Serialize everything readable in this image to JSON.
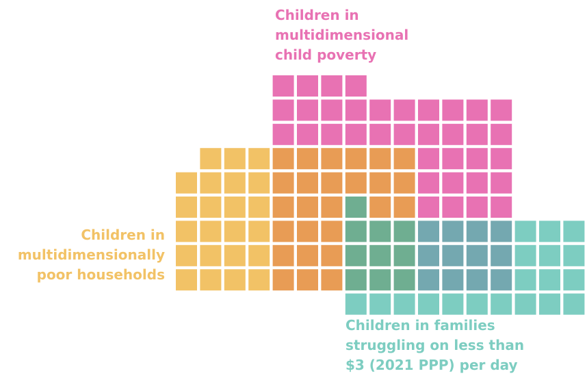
{
  "chart_data": {
    "type": "waffle",
    "title": "",
    "groups": [
      {
        "name": "Children in multidimensional child poverty",
        "label_lines": [
          "Children in",
          "multidimensional",
          "child poverty"
        ],
        "color": "#E872B3"
      },
      {
        "name": "Children in multidimensionally poor households",
        "label_lines": [
          "Children in",
          "multidimensionally",
          "poor households"
        ],
        "color": "#F2C266"
      },
      {
        "name": "Children in families struggling on less than $3 (2021 PPP) per day",
        "label_lines": [
          "Children in families",
          "struggling on less than",
          "$3 (2021 PPP) per day"
        ],
        "color": "#7DCDC1"
      }
    ],
    "overlap_colors": {
      "child_poverty_and_poor_households": "#E89C55",
      "child_poverty_and_3_dollar": "#74A8B0",
      "poor_households_and_3_dollar": "#6FAE91",
      "all_three": "#6FAE91"
    },
    "rows": [
      [
        "",
        "",
        "",
        "",
        "CP",
        "CP",
        "CP",
        "CP",
        "",
        "",
        "",
        "",
        "",
        "",
        "",
        "",
        ""
      ],
      [
        "",
        "",
        "",
        "",
        "CP",
        "CP",
        "CP",
        "CP",
        "CP",
        "CP",
        "CP",
        "CP",
        "CP",
        "CP",
        "",
        "",
        ""
      ],
      [
        "",
        "",
        "",
        "",
        "CP",
        "CP",
        "CP",
        "CP",
        "CP",
        "CP",
        "CP",
        "CP",
        "CP",
        "CP",
        "",
        "",
        ""
      ],
      [
        "",
        "HH",
        "HH",
        "HH",
        "CP+HH",
        "CP+HH",
        "CP+HH",
        "CP+HH",
        "CP+HH",
        "CP+HH",
        "CP",
        "CP",
        "CP",
        "CP",
        "",
        "",
        ""
      ],
      [
        "HH",
        "HH",
        "HH",
        "HH",
        "CP+HH",
        "CP+HH",
        "CP+HH",
        "CP+HH",
        "CP+HH",
        "CP+HH",
        "CP",
        "CP",
        "CP",
        "CP",
        "",
        "",
        ""
      ],
      [
        "HH",
        "HH",
        "HH",
        "HH",
        "CP+HH",
        "CP+HH",
        "CP+HH",
        "ALL",
        "CP+HH",
        "CP+HH",
        "CP",
        "CP",
        "CP",
        "CP",
        "",
        "",
        ""
      ],
      [
        "HH",
        "HH",
        "HH",
        "HH",
        "CP+HH",
        "CP+HH",
        "CP+HH",
        "HH+D3",
        "HH+D3",
        "HH+D3",
        "CP+D3",
        "CP+D3",
        "CP+D3",
        "CP+D3",
        "D3",
        "D3",
        "D3"
      ],
      [
        "HH",
        "HH",
        "HH",
        "HH",
        "CP+HH",
        "CP+HH",
        "CP+HH",
        "HH+D3",
        "HH+D3",
        "HH+D3",
        "CP+D3",
        "CP+D3",
        "CP+D3",
        "CP+D3",
        "D3",
        "D3",
        "D3"
      ],
      [
        "HH",
        "HH",
        "HH",
        "HH",
        "CP+HH",
        "CP+HH",
        "CP+HH",
        "HH+D3",
        "HH+D3",
        "HH+D3",
        "CP+D3",
        "CP+D3",
        "CP+D3",
        "CP+D3",
        "D3",
        "D3",
        "D3"
      ],
      [
        "",
        "",
        "",
        "",
        "",
        "",
        "",
        "D3",
        "D3",
        "D3",
        "D3",
        "D3",
        "D3",
        "D3",
        "D3",
        "D3",
        "D3"
      ]
    ]
  }
}
